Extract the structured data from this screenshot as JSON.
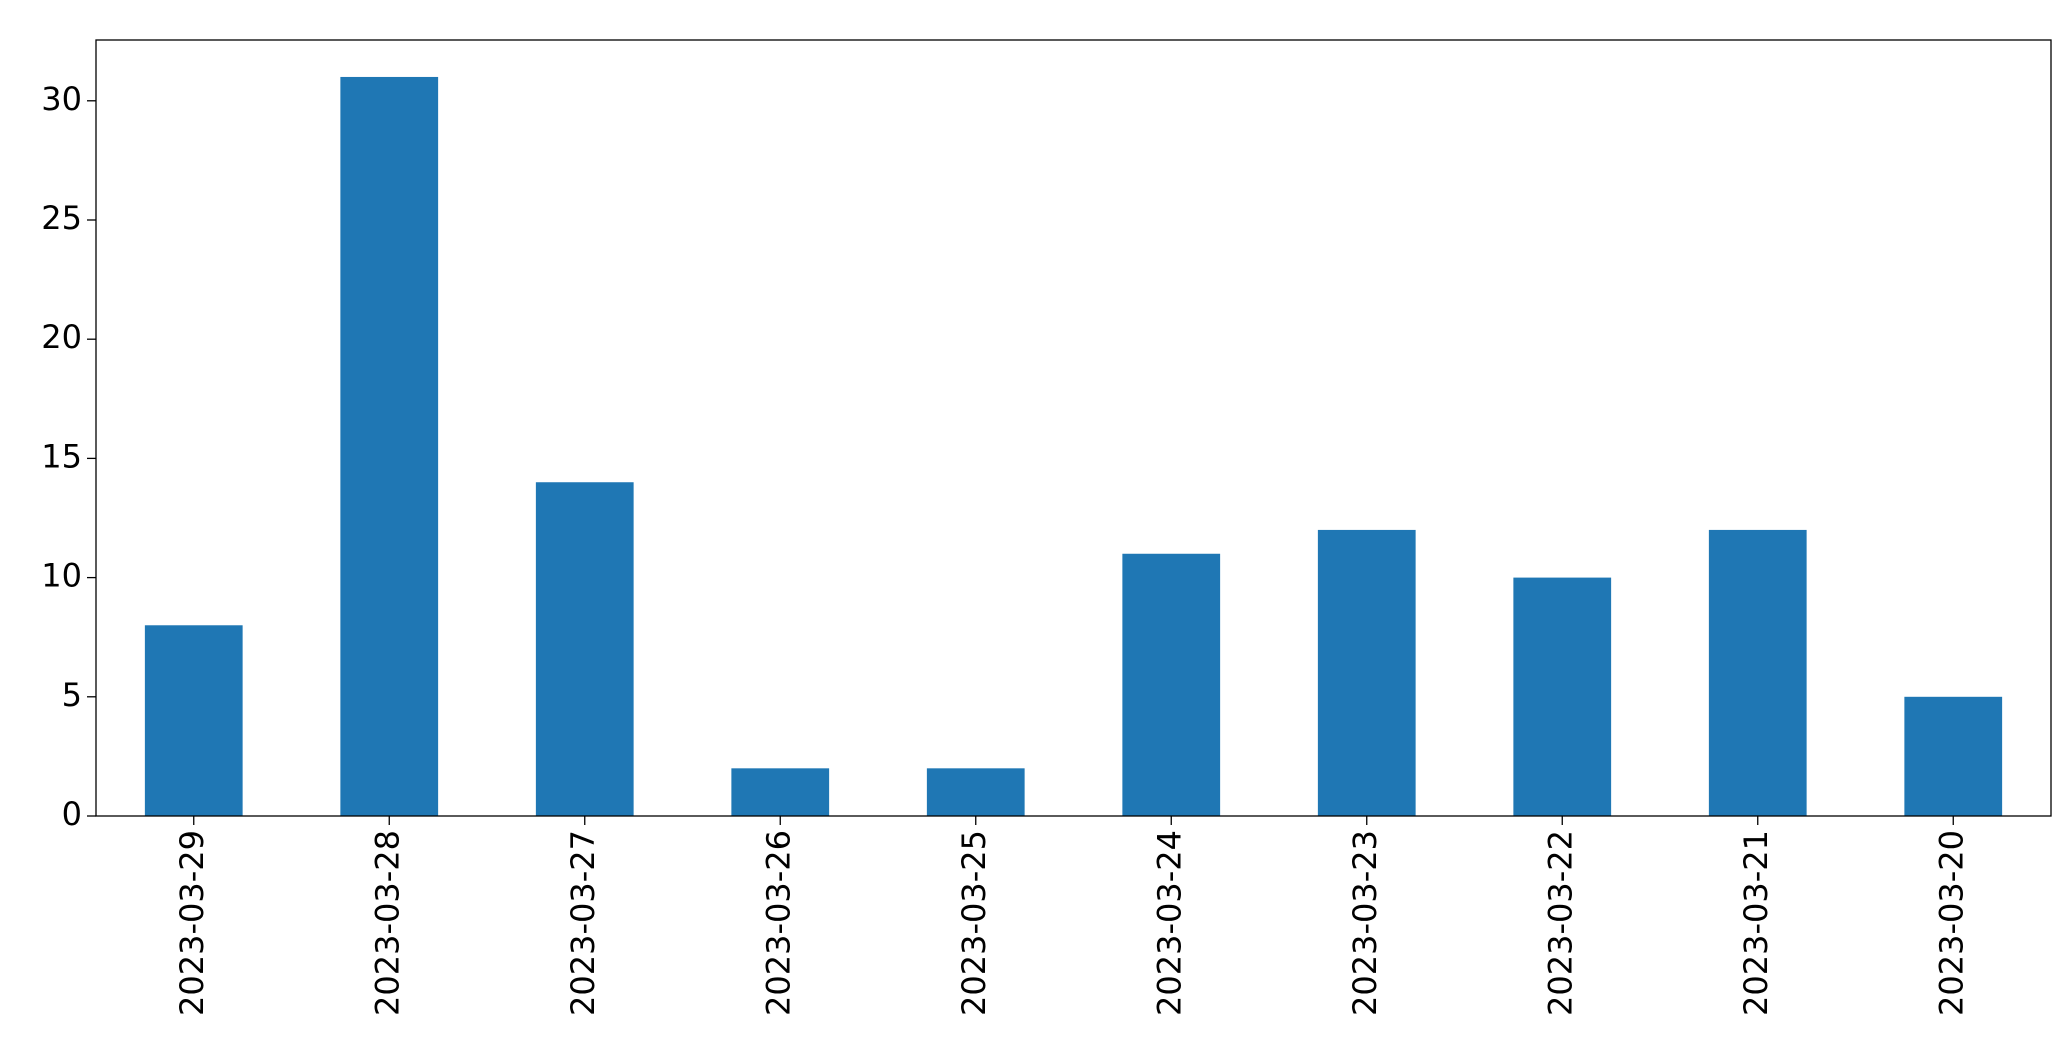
{
  "chart_data": {
    "type": "bar",
    "categories": [
      "2023-03-29",
      "2023-03-28",
      "2023-03-27",
      "2023-03-26",
      "2023-03-25",
      "2023-03-24",
      "2023-03-23",
      "2023-03-22",
      "2023-03-21",
      "2023-03-20"
    ],
    "values": [
      8,
      31,
      14,
      2,
      2,
      11,
      12,
      10,
      12,
      5
    ],
    "color": "#1f77b4",
    "ylim": [
      0,
      32.55
    ],
    "yticks": [
      0,
      5,
      10,
      15,
      20,
      25,
      30
    ],
    "grid": false
  }
}
